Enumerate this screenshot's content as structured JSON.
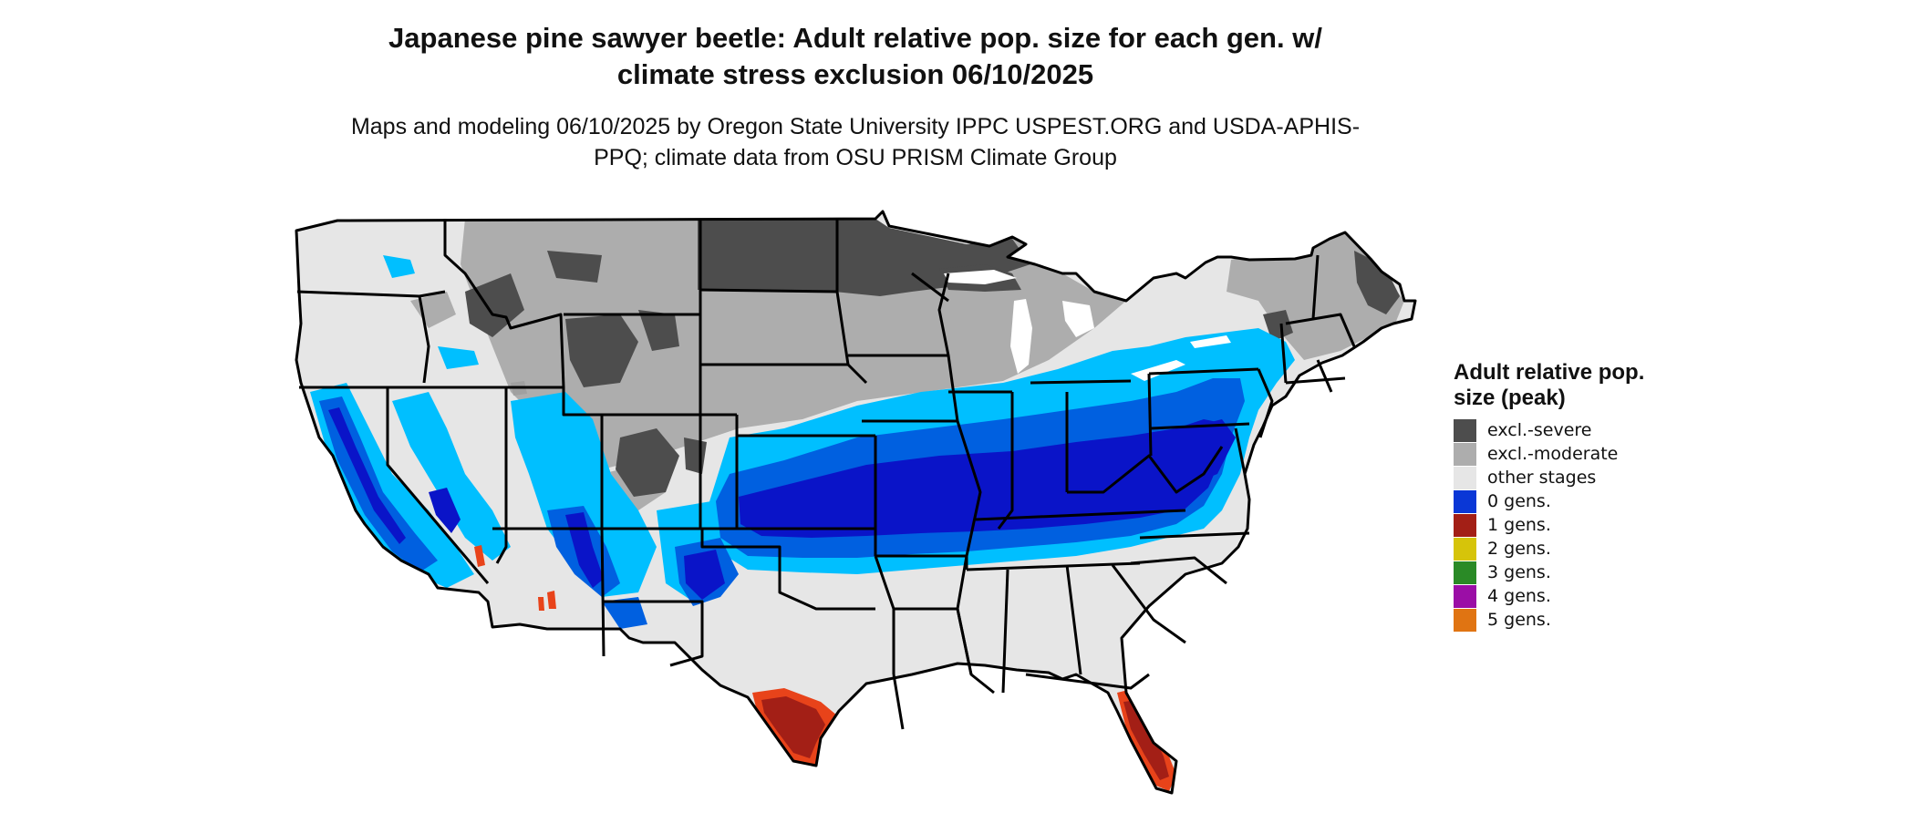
{
  "title": "Japanese pine sawyer beetle: Adult relative pop. size for each gen. w/ climate stress exclusion 06/10/2025",
  "subtitle": "Maps and modeling 06/10/2025 by Oregon State University IPPC USPEST.ORG and USDA-APHIS-PPQ; climate data from OSU PRISM Climate Group",
  "legend": {
    "title": "Adult relative pop. size (peak)",
    "items": [
      {
        "label": "excl.-severe",
        "color": "#4d4d4d"
      },
      {
        "label": "excl.-moderate",
        "color": "#adadad"
      },
      {
        "label": "other stages",
        "color": "#e6e6e6"
      },
      {
        "label": "0 gens.",
        "color": "#0a37d6"
      },
      {
        "label": "1 gens.",
        "color": "#a31f16"
      },
      {
        "label": "2 gens.",
        "color": "#d6c40a"
      },
      {
        "label": "3 gens.",
        "color": "#2a8a26"
      },
      {
        "label": "4 gens.",
        "color": "#9b0ea6"
      },
      {
        "label": "5 gens.",
        "color": "#e07412"
      }
    ]
  },
  "map_colors": {
    "severe": "#4d4d4d",
    "moderate": "#adadad",
    "other": "#e6e6e6",
    "light_blue": "#00bfff",
    "mid_blue": "#0060e0",
    "dark_blue": "#0a14c8",
    "red": "#a31f16",
    "orange": "#e8431a",
    "border": "#000000",
    "water": "#ffffff"
  }
}
